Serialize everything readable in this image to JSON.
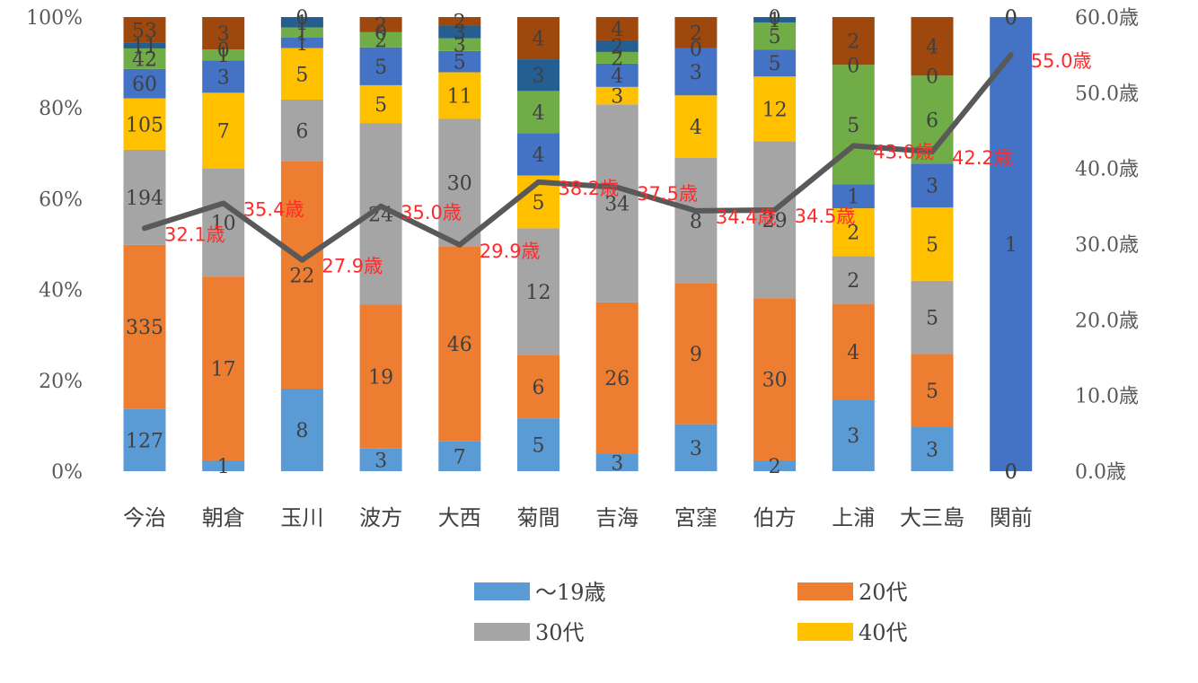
{
  "chart_data": {
    "type": "bar",
    "stacked": "percent",
    "categories": [
      "今治",
      "朝倉",
      "玉川",
      "波方",
      "大西",
      "菊間",
      "吉海",
      "宮窪",
      "伯方",
      "上浦",
      "大三島",
      "関前"
    ],
    "y_left_ticks": [
      "0%",
      "20%",
      "40%",
      "60%",
      "80%",
      "100%"
    ],
    "y_right_ticks": [
      "0.0歳",
      "10.0歳",
      "20.0歳",
      "30.0歳",
      "40.0歳",
      "50.0歳",
      "60.0歳"
    ],
    "ylim_left": [
      0,
      100
    ],
    "ylim_right": [
      0,
      60
    ],
    "series": [
      {
        "name": "～19歳",
        "color": "#5b9bd5",
        "values": [
          127,
          1,
          8,
          3,
          7,
          5,
          3,
          3,
          2,
          3,
          3,
          0
        ]
      },
      {
        "name": "20代",
        "color": "#ed7d31",
        "values": [
          335,
          17,
          22,
          19,
          46,
          6,
          26,
          9,
          30,
          4,
          5,
          0
        ]
      },
      {
        "name": "30代",
        "color": "#a5a5a5",
        "values": [
          194,
          10,
          6,
          24,
          30,
          12,
          34,
          8,
          29,
          2,
          5,
          0
        ]
      },
      {
        "name": "40代",
        "color": "#ffc000",
        "values": [
          105,
          7,
          5,
          5,
          11,
          5,
          3,
          4,
          12,
          2,
          5,
          0
        ]
      },
      {
        "color": "#4472c4",
        "values": [
          60,
          3,
          1,
          5,
          5,
          4,
          4,
          3,
          5,
          1,
          3,
          1
        ]
      },
      {
        "color": "#70ad47",
        "values": [
          42,
          1,
          1,
          2,
          3,
          4,
          2,
          0,
          5,
          5,
          6,
          0
        ]
      },
      {
        "color": "#255e91",
        "values": [
          11,
          0,
          1,
          0,
          3,
          3,
          2,
          0,
          1,
          0,
          0,
          0
        ]
      },
      {
        "color": "#9e480e",
        "values": [
          53,
          3,
          0,
          2,
          2,
          4,
          4,
          2,
          0,
          2,
          4,
          0
        ]
      }
    ],
    "average_age": {
      "color": "#595959",
      "values": [
        32.1,
        35.4,
        27.9,
        35.0,
        29.9,
        38.2,
        37.5,
        34.4,
        34.5,
        43.0,
        42.2,
        55.0
      ],
      "labels": [
        "32.1歳",
        "35.4歳",
        "27.9歳",
        "35.0歳",
        "29.9歳",
        "38.2歳",
        "37.5歳",
        "34.4歳",
        "34.5歳",
        "43.0歳",
        "42.2歳",
        "55.0歳"
      ]
    },
    "legend_position": "bottom",
    "legend_shown_series": [
      0,
      1,
      2,
      3
    ],
    "grid": false
  }
}
